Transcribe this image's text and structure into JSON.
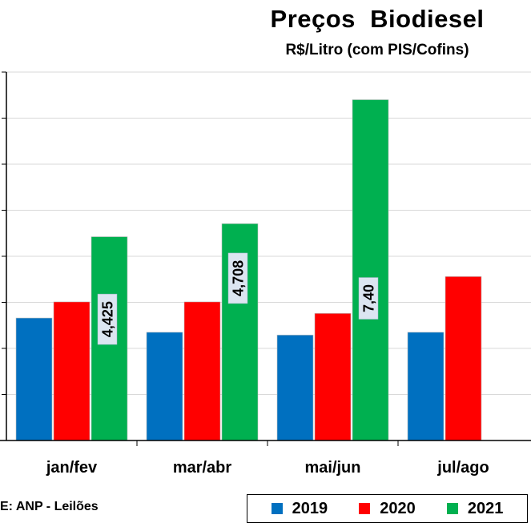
{
  "header": {
    "title": "Preços  Biodiesel",
    "subtitle": "R$/Litro (com PIS/Cofins)"
  },
  "footer": {
    "source": "E: ANP - Leilões"
  },
  "colors": {
    "2019": "#0070C0",
    "2020": "#FF0000",
    "2021": "#00B050",
    "grid": "#d9d9d9",
    "label_bg": "#dbe5f1"
  },
  "chart_data": {
    "type": "bar",
    "title": "Preços  Biodiesel",
    "subtitle": "R$/Litro (com PIS/Cofins)",
    "categories": [
      "jan/fev",
      "mar/abr",
      "mai/jun",
      "jul/ago"
    ],
    "series": [
      {
        "name": "2019",
        "values": [
          2.66,
          2.35,
          2.29,
          2.35
        ]
      },
      {
        "name": "2020",
        "values": [
          3.01,
          3.01,
          2.76,
          3.56
        ]
      },
      {
        "name": "2021",
        "values": [
          4.425,
          4.708,
          7.4,
          null
        ]
      }
    ],
    "data_labels": [
      {
        "series": "2021",
        "category": "jan/fev",
        "text": "4,425"
      },
      {
        "series": "2021",
        "category": "mar/abr",
        "text": "4,708"
      },
      {
        "series": "2021",
        "category": "mai/jun",
        "text": "7,40"
      }
    ],
    "ylim": [
      0,
      8
    ],
    "grid": true,
    "legend_position": "bottom-right",
    "xlabel": "",
    "ylabel": ""
  }
}
